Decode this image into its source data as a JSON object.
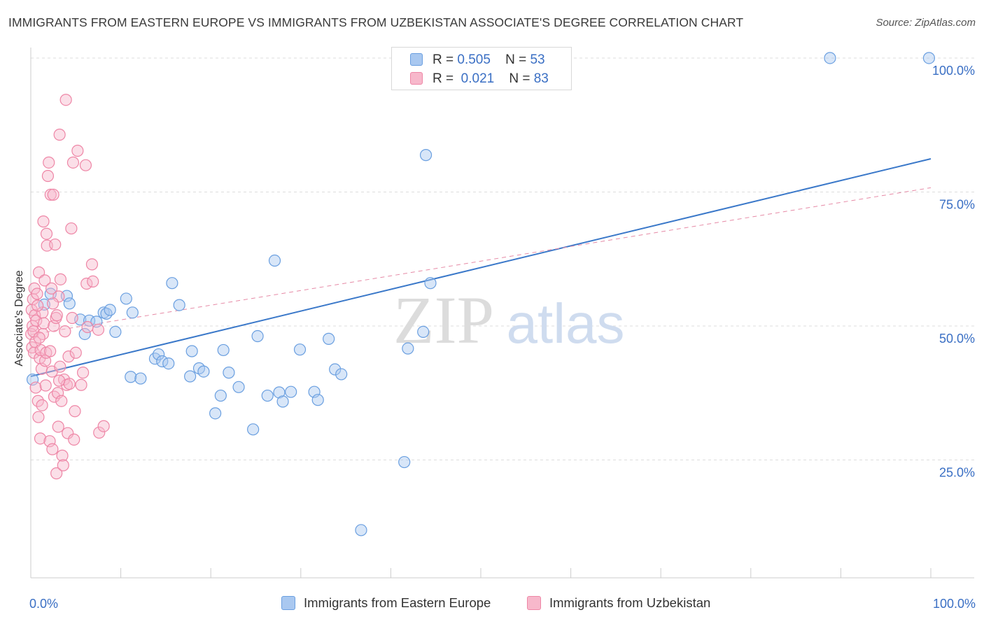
{
  "title": "IMMIGRANTS FROM EASTERN EUROPE VS IMMIGRANTS FROM UZBEKISTAN ASSOCIATE'S DEGREE CORRELATION CHART",
  "source": "Source: ZipAtlas.com",
  "watermark": {
    "zip": "ZIP",
    "atlas": "atlas"
  },
  "legend": {
    "r_label": "R =",
    "n_label": "N =",
    "rows": [
      {
        "r": "0.505",
        "n": "53"
      },
      {
        "r": "0.021",
        "n": "83"
      }
    ]
  },
  "colors": {
    "blue_fill": "#a9c8f0",
    "blue_stroke": "#6a9fe0",
    "blue_line": "#3a78c9",
    "pink_fill": "#f7b8cb",
    "pink_stroke": "#ee86a6",
    "pink_line": "#e68aa6",
    "tick_text": "#3a6fc4",
    "grid": "#dddddd"
  },
  "chart_data": {
    "type": "scatter",
    "title": "IMMIGRANTS FROM EASTERN EUROPE VS IMMIGRANTS FROM UZBEKISTAN ASSOCIATE'S DEGREE CORRELATION CHART",
    "xlabel": "",
    "ylabel": "Associate's Degree",
    "xlim": [
      0,
      100
    ],
    "ylim": [
      3,
      103
    ],
    "y_ticks": [
      25,
      50,
      75,
      100
    ],
    "y_tick_labels": [
      "25.0%",
      "50.0%",
      "75.0%",
      "100.0%"
    ],
    "x_tick_labels": [
      "0.0%",
      "100.0%"
    ],
    "series": [
      {
        "name": "Immigrants from Eastern Europe",
        "color": "blue",
        "trend": {
          "x": [
            0,
            100
          ],
          "y": [
            40.6,
            81.2
          ],
          "style": "solid"
        },
        "points": [
          [
            0.2,
            40
          ],
          [
            1.5,
            54
          ],
          [
            2.2,
            56
          ],
          [
            4,
            55.6
          ],
          [
            4.3,
            54.2
          ],
          [
            5.5,
            51.2
          ],
          [
            6,
            48.5
          ],
          [
            6.5,
            51
          ],
          [
            7.3,
            50.8
          ],
          [
            8.1,
            52.5
          ],
          [
            8.4,
            52.3
          ],
          [
            8.8,
            53
          ],
          [
            9.4,
            48.9
          ],
          [
            10.6,
            55.1
          ],
          [
            11.1,
            40.5
          ],
          [
            11.3,
            52.5
          ],
          [
            12.2,
            40.2
          ],
          [
            13.8,
            43.9
          ],
          [
            14.2,
            44.7
          ],
          [
            14.6,
            43.4
          ],
          [
            15.3,
            43
          ],
          [
            15.7,
            58
          ],
          [
            16.5,
            53.9
          ],
          [
            17.7,
            40.6
          ],
          [
            17.9,
            45.3
          ],
          [
            18.7,
            42.1
          ],
          [
            19.2,
            41.5
          ],
          [
            20.5,
            33.7
          ],
          [
            21.1,
            37
          ],
          [
            21.4,
            45.5
          ],
          [
            22,
            41.3
          ],
          [
            23.1,
            38.6
          ],
          [
            24.7,
            30.7
          ],
          [
            25.2,
            48.1
          ],
          [
            26.3,
            37
          ],
          [
            27.1,
            62.2
          ],
          [
            27.6,
            37.6
          ],
          [
            28,
            35.9
          ],
          [
            28.9,
            37.7
          ],
          [
            29.9,
            45.6
          ],
          [
            31.5,
            37.7
          ],
          [
            31.9,
            36.2
          ],
          [
            33.1,
            47.6
          ],
          [
            33.8,
            41.9
          ],
          [
            34.5,
            41
          ],
          [
            36.7,
            11.9
          ],
          [
            41.5,
            24.6
          ],
          [
            41.9,
            45.8
          ],
          [
            43.6,
            48.9
          ],
          [
            43.9,
            81.9
          ],
          [
            44.4,
            58
          ],
          [
            88.8,
            100
          ],
          [
            99.8,
            100
          ]
        ]
      },
      {
        "name": "Immigrants from Uzbekistan",
        "color": "pink",
        "trend": {
          "x": [
            0,
            100
          ],
          "y": [
            48.4,
            75.8
          ],
          "style": "dashed"
        },
        "points": [
          [
            0.05,
            48.5
          ],
          [
            0.1,
            53
          ],
          [
            0.15,
            46
          ],
          [
            0.2,
            50
          ],
          [
            0.25,
            55
          ],
          [
            0.3,
            49
          ],
          [
            0.35,
            45
          ],
          [
            0.4,
            57
          ],
          [
            0.45,
            52
          ],
          [
            0.5,
            47
          ],
          [
            0.6,
            51
          ],
          [
            0.7,
            56
          ],
          [
            0.8,
            36
          ],
          [
            0.85,
            33
          ],
          [
            0.9,
            60
          ],
          [
            1,
            44
          ],
          [
            1.05,
            29
          ],
          [
            1.1,
            45.5
          ],
          [
            1.2,
            42
          ],
          [
            1.3,
            52.5
          ],
          [
            1.35,
            48.5
          ],
          [
            1.4,
            69.5
          ],
          [
            1.45,
            50.5
          ],
          [
            1.55,
            58.5
          ],
          [
            1.6,
            43.5
          ],
          [
            1.7,
            45
          ],
          [
            1.75,
            67.2
          ],
          [
            1.8,
            65
          ],
          [
            1.9,
            78
          ],
          [
            2,
            80.5
          ],
          [
            2.1,
            28.5
          ],
          [
            2.2,
            74.5
          ],
          [
            2.3,
            57
          ],
          [
            2.35,
            41.5
          ],
          [
            2.4,
            27
          ],
          [
            2.5,
            74.5
          ],
          [
            2.55,
            50
          ],
          [
            2.6,
            36.8
          ],
          [
            2.7,
            65.2
          ],
          [
            2.8,
            51.5
          ],
          [
            2.85,
            22.5
          ],
          [
            2.9,
            52
          ],
          [
            3,
            37.5
          ],
          [
            3.05,
            31.2
          ],
          [
            3.1,
            55.5
          ],
          [
            3.2,
            85.7
          ],
          [
            3.3,
            58.7
          ],
          [
            3.4,
            36
          ],
          [
            3.5,
            25.8
          ],
          [
            3.6,
            24
          ],
          [
            3.7,
            40
          ],
          [
            3.8,
            49
          ],
          [
            3.9,
            92.2
          ],
          [
            4,
            39
          ],
          [
            4.1,
            30
          ],
          [
            4.2,
            44.3
          ],
          [
            4.3,
            39.2
          ],
          [
            4.5,
            68.2
          ],
          [
            4.6,
            51.5
          ],
          [
            4.7,
            80.5
          ],
          [
            4.8,
            28.8
          ],
          [
            4.9,
            34.1
          ],
          [
            5,
            45
          ],
          [
            5.2,
            82.7
          ],
          [
            5.6,
            39
          ],
          [
            5.8,
            41.3
          ],
          [
            6.1,
            80
          ],
          [
            6.2,
            57.9
          ],
          [
            6.3,
            49.8
          ],
          [
            6.8,
            61.5
          ],
          [
            6.9,
            58.3
          ],
          [
            7.5,
            49.3
          ],
          [
            7.6,
            30.1
          ],
          [
            8.1,
            31.3
          ],
          [
            0.55,
            38.5
          ],
          [
            1.25,
            35.2
          ],
          [
            0.95,
            47.8
          ],
          [
            2.15,
            45.3
          ],
          [
            1.65,
            38.9
          ],
          [
            3.25,
            42.4
          ],
          [
            0.75,
            53.8
          ],
          [
            2.45,
            54.2
          ],
          [
            3.15,
            39.8
          ]
        ]
      }
    ]
  },
  "bottom_legend": [
    "Immigrants from Eastern Europe",
    "Immigrants from Uzbekistan"
  ]
}
